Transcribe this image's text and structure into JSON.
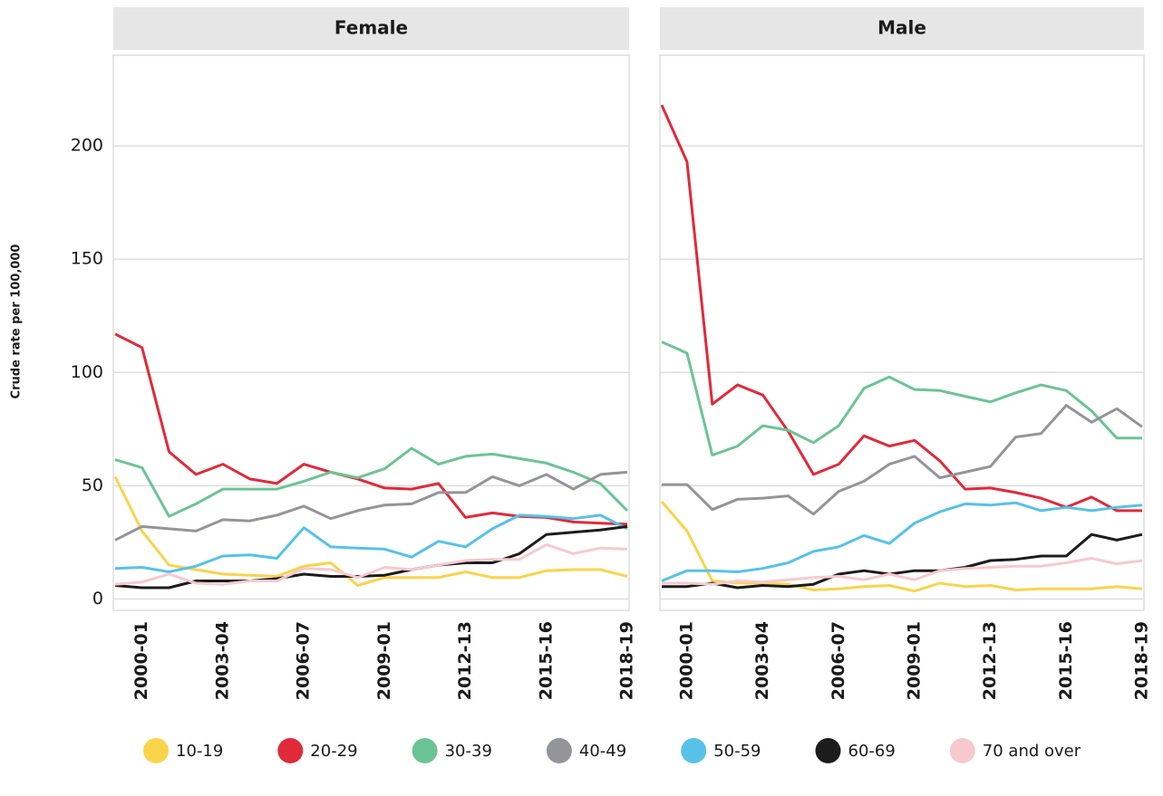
{
  "chart_data": {
    "type": "line",
    "ylabel": "Crude rate per 100,000",
    "panels": [
      "Female",
      "Male"
    ],
    "categories": [
      null,
      "2000-01",
      null,
      null,
      "2003-04",
      null,
      null,
      "2006-07",
      null,
      null,
      "2009-01",
      null,
      null,
      "2012-13",
      null,
      null,
      "2015-16",
      null,
      null,
      "2018-19"
    ],
    "ylim": [
      -5,
      240
    ],
    "yticks": [
      0,
      50,
      100,
      150,
      200
    ],
    "grid": true,
    "legend": "bottom",
    "series": [
      {
        "name": "10-19",
        "color": "#f9d44b",
        "values": [
          [
            54,
            30,
            15,
            13,
            11,
            10.5,
            10,
            14.5,
            16,
            6,
            9.5,
            9.5,
            9.5,
            12,
            9.5,
            9.5,
            12.5,
            13,
            13,
            10
          ],
          [
            43,
            30,
            8,
            7,
            7,
            6.5,
            4,
            4.5,
            5.5,
            6,
            3.5,
            7,
            5.5,
            6,
            4,
            4.5,
            4.5,
            4.5,
            5.5,
            4.5
          ]
        ]
      },
      {
        "name": "20-29",
        "color": "#e02a3a",
        "values": [
          [
            117,
            111,
            65,
            55,
            59.5,
            53,
            51,
            59.5,
            56,
            53,
            49,
            48.5,
            51,
            36,
            38,
            36.5,
            36,
            34,
            33.5,
            33
          ],
          [
            218,
            193,
            86,
            94.5,
            90,
            74,
            55,
            59.5,
            72,
            67.5,
            70,
            61,
            48.5,
            49,
            47,
            44.5,
            40.5,
            45,
            39,
            39
          ]
        ]
      },
      {
        "name": "30-39",
        "color": "#6cc495",
        "values": [
          [
            61.5,
            58,
            36.5,
            42,
            48.5,
            48.5,
            48.5,
            52,
            56,
            53.5,
            57.5,
            66.5,
            59.5,
            63,
            64,
            62,
            60,
            56,
            51,
            39
          ],
          [
            113.5,
            108.5,
            63.5,
            67.5,
            76.5,
            74.5,
            69,
            76.5,
            93,
            98,
            92.5,
            92,
            89.5,
            87,
            91,
            94.5,
            92,
            83,
            71,
            71
          ]
        ]
      },
      {
        "name": "40-49",
        "color": "#939598",
        "values": [
          [
            26,
            32,
            31,
            30,
            35,
            34.5,
            37,
            41,
            35.5,
            39,
            41.5,
            42,
            47,
            47,
            54,
            50,
            55,
            48.5,
            55,
            56
          ],
          [
            50.5,
            50.5,
            39.5,
            44,
            44.5,
            45.5,
            37.5,
            47.5,
            52,
            59.5,
            63,
            53.5,
            56,
            58.5,
            71.5,
            73,
            85.5,
            78,
            84,
            76
          ]
        ]
      },
      {
        "name": "50-59",
        "color": "#56c2e8",
        "values": [
          [
            13.5,
            14,
            12,
            14.5,
            19,
            19.5,
            18,
            31.5,
            23,
            22.5,
            22,
            18.5,
            25.5,
            23,
            31,
            37,
            36.5,
            35.5,
            37,
            31
          ],
          [
            8,
            12.5,
            12.5,
            12,
            13.5,
            16,
            21,
            23,
            28,
            24.5,
            33.5,
            38.5,
            42,
            41.5,
            42.5,
            39,
            40.5,
            39,
            40.5,
            41.5
          ]
        ]
      },
      {
        "name": "60-69",
        "color": "#1c1c1c",
        "values": [
          [
            6,
            5,
            5,
            8,
            8,
            8,
            9,
            11,
            10,
            10,
            10.5,
            13,
            15,
            16,
            16,
            20,
            28.5,
            29.5,
            30.5,
            32
          ],
          [
            5.5,
            5.5,
            7,
            5,
            6,
            5.5,
            6.5,
            11,
            12.5,
            11,
            12.5,
            12.5,
            14,
            17,
            17.5,
            19,
            19,
            28.5,
            26,
            28.5
          ]
        ]
      },
      {
        "name": "70 and over",
        "color": "#f6c9cf",
        "values": [
          [
            6.5,
            7.5,
            11,
            7,
            6.5,
            8,
            8,
            13.5,
            13,
            9.5,
            14,
            13,
            15,
            17,
            17.5,
            17.5,
            24,
            20,
            22.5,
            22
          ],
          [
            7,
            7,
            6.5,
            8,
            7.5,
            8.5,
            9.5,
            10,
            8.5,
            11,
            8.5,
            12.5,
            13.5,
            14,
            14.5,
            14.5,
            16,
            18,
            15.5,
            17
          ]
        ]
      }
    ]
  }
}
